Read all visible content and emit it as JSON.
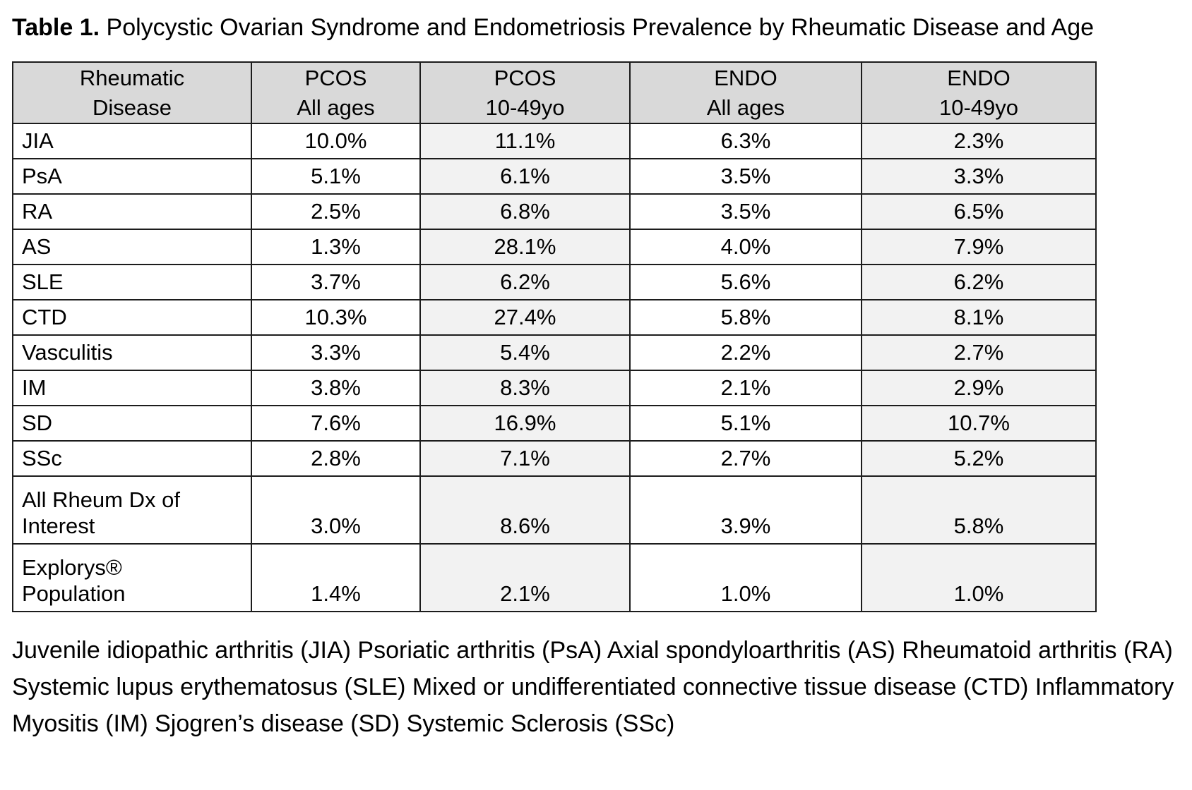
{
  "title": {
    "label": "Table 1.",
    "text": " Polycystic Ovarian Syndrome and Endometriosis Prevalence by Rheumatic Disease and Age"
  },
  "table": {
    "headers": [
      {
        "line1": "Rheumatic",
        "line2": "Disease"
      },
      {
        "line1": "PCOS",
        "line2": "All ages"
      },
      {
        "line1": "PCOS",
        "line2": "10-49yo"
      },
      {
        "line1": "ENDO",
        "line2": "All ages"
      },
      {
        "line1": "ENDO",
        "line2": "10-49yo"
      }
    ],
    "rows": [
      {
        "label": "JIA",
        "values": [
          "10.0%",
          "11.1%",
          "6.3%",
          "2.3%"
        ]
      },
      {
        "label": "PsA",
        "values": [
          "5.1%",
          "6.1%",
          "3.5%",
          "3.3%"
        ]
      },
      {
        "label": "RA",
        "values": [
          "2.5%",
          "6.8%",
          "3.5%",
          "6.5%"
        ]
      },
      {
        "label": "AS",
        "values": [
          "1.3%",
          "28.1%",
          "4.0%",
          "7.9%"
        ]
      },
      {
        "label": "SLE",
        "values": [
          "3.7%",
          "6.2%",
          "5.6%",
          "6.2%"
        ]
      },
      {
        "label": "CTD",
        "values": [
          "10.3%",
          "27.4%",
          "5.8%",
          "8.1%"
        ]
      },
      {
        "label": "Vasculitis",
        "values": [
          "3.3%",
          "5.4%",
          "2.2%",
          "2.7%"
        ]
      },
      {
        "label": "IM",
        "values": [
          "3.8%",
          "8.3%",
          "2.1%",
          "2.9%"
        ]
      },
      {
        "label": "SD",
        "values": [
          "7.6%",
          "16.9%",
          "5.1%",
          "10.7%"
        ]
      },
      {
        "label": "SSc",
        "values": [
          "2.8%",
          "7.1%",
          "2.7%",
          "5.2%"
        ]
      },
      {
        "label": "All Rheum Dx of\nInterest",
        "values": [
          "3.0%",
          "8.6%",
          "3.9%",
          "5.8%"
        ]
      },
      {
        "label": "Explorys®\nPopulation",
        "values": [
          "1.4%",
          "2.1%",
          "1.0%",
          "1.0%"
        ]
      }
    ]
  },
  "footnote": "Juvenile idiopathic arthritis (JIA) Psoriatic arthritis (PsA) Axial spondyloarthritis (AS) Rheumatoid arthritis (RA) Systemic lupus erythematosus (SLE) Mixed or undifferentiated connective tissue disease (CTD) Inflammatory Myositis (IM) Sjogren’s disease (SD) Systemic Sclerosis (SSc)",
  "colors": {
    "background": "#ffffff",
    "text": "#000000",
    "header_bg": "#d9d9d9",
    "shaded_col_bg": "#f2f2f2",
    "border": "#1c1c1c"
  }
}
